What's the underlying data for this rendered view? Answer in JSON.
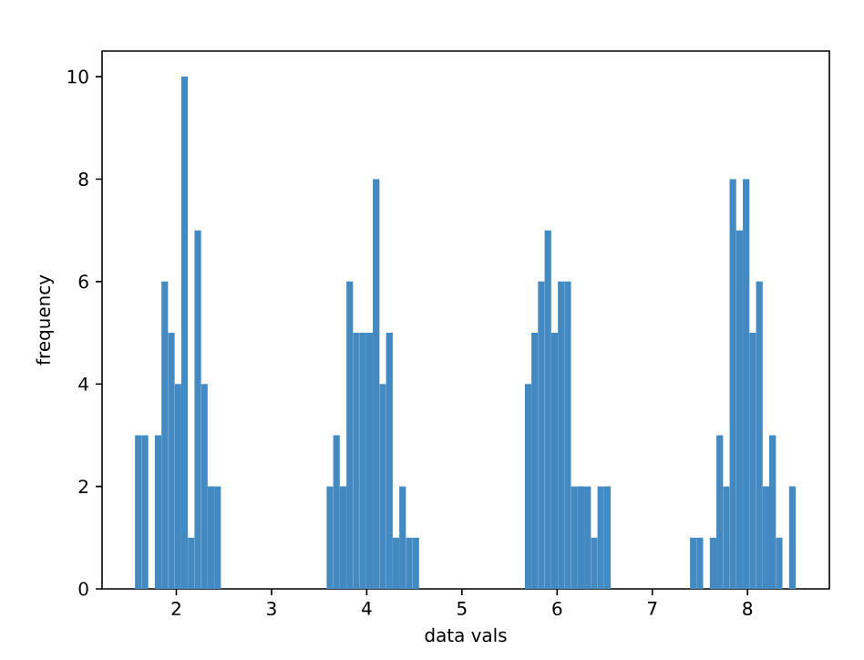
{
  "chart_data": {
    "type": "histogram",
    "xlabel": "data vals",
    "ylabel": "frequency",
    "color": "#448ac2",
    "bins": [
      1.566,
      1.635,
      1.705,
      1.774,
      1.844,
      1.913,
      1.982,
      2.052,
      2.121,
      2.191,
      2.26,
      2.329,
      2.399,
      2.468,
      2.538,
      2.607,
      2.676,
      2.746,
      2.815,
      2.885,
      2.954,
      3.023,
      3.093,
      3.162,
      3.232,
      3.301,
      3.37,
      3.44,
      3.509,
      3.579,
      3.648,
      3.717,
      3.787,
      3.856,
      3.926,
      3.995,
      4.064,
      4.134,
      4.203,
      4.273,
      4.342,
      4.411,
      4.481,
      4.55,
      4.62,
      4.689,
      4.758,
      4.828,
      4.897,
      4.967,
      5.036,
      5.105,
      5.175,
      5.244,
      5.314,
      5.383,
      5.452,
      5.522,
      5.591,
      5.661,
      5.73,
      5.799,
      5.869,
      5.938,
      6.008,
      6.077,
      6.146,
      6.216,
      6.285,
      6.355,
      6.424,
      6.493,
      6.563,
      6.632,
      6.702,
      6.771,
      6.84,
      6.91,
      6.979,
      7.049,
      7.118,
      7.187,
      7.257,
      7.326,
      7.396,
      7.465,
      7.534,
      7.604,
      7.673,
      7.743,
      7.812,
      7.881,
      7.951,
      8.02,
      8.09,
      8.159,
      8.228,
      8.298,
      8.367,
      8.437,
      8.506
    ],
    "values": [
      3,
      3,
      0,
      3,
      6,
      5,
      4,
      10,
      1,
      7,
      4,
      2,
      2,
      0,
      0,
      0,
      0,
      0,
      0,
      0,
      0,
      0,
      0,
      0,
      0,
      0,
      0,
      0,
      0,
      2,
      3,
      2,
      6,
      5,
      5,
      5,
      8,
      4,
      5,
      1,
      2,
      1,
      1,
      0,
      0,
      0,
      0,
      0,
      0,
      0,
      0,
      0,
      0,
      0,
      0,
      0,
      0,
      0,
      0,
      4,
      5,
      6,
      7,
      5,
      6,
      6,
      2,
      2,
      2,
      1,
      2,
      2,
      0,
      0,
      0,
      0,
      0,
      0,
      0,
      0,
      0,
      0,
      0,
      0,
      1,
      1,
      0,
      1,
      3,
      2,
      8,
      7,
      8,
      5,
      6,
      2,
      3,
      1,
      0,
      2
    ],
    "xlim": [
      1.22,
      8.86
    ],
    "ylim": [
      0,
      10.5
    ],
    "xticks": [
      2,
      3,
      4,
      5,
      6,
      7,
      8
    ],
    "yticks": [
      0,
      2,
      4,
      6,
      8,
      10
    ]
  }
}
